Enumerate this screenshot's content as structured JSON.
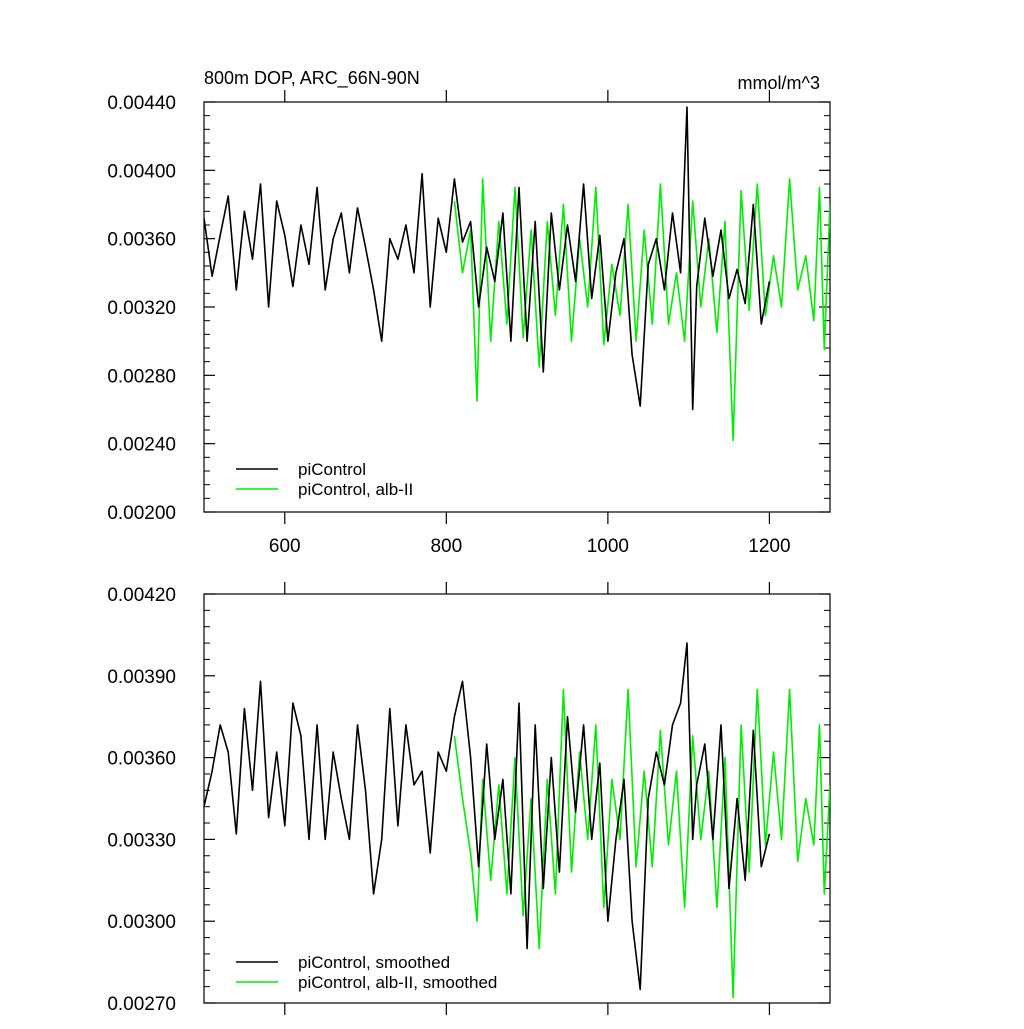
{
  "chart_data": [
    {
      "type": "line",
      "title": "800m DOP, ARC_66N-90N",
      "units": "mmol/m^3",
      "xlabel": "",
      "ylabel": "",
      "xlim": [
        500,
        1275
      ],
      "ylim": [
        0.002,
        0.0044
      ],
      "xticks": [
        600,
        800,
        1000,
        1200
      ],
      "xtick_labels": [
        "600",
        "800",
        "1000",
        "1200"
      ],
      "yticks": [
        0.002,
        0.0024,
        0.0028,
        0.0032,
        0.0036,
        0.004,
        0.0044
      ],
      "ytick_labels": [
        "0.00200",
        "0.00240",
        "0.00280",
        "0.00320",
        "0.00360",
        "0.00400",
        "0.00440"
      ],
      "grid": false,
      "legend_position": "bottom-left",
      "series": [
        {
          "name": "piControl",
          "color": "#000000",
          "x": [
            500,
            510,
            520,
            530,
            540,
            550,
            560,
            570,
            580,
            590,
            600,
            610,
            620,
            630,
            640,
            650,
            660,
            670,
            680,
            690,
            700,
            710,
            720,
            730,
            740,
            750,
            760,
            770,
            780,
            790,
            800,
            810,
            820,
            830,
            840,
            850,
            860,
            870,
            880,
            890,
            900,
            910,
            920,
            930,
            940,
            950,
            960,
            970,
            980,
            990,
            1000,
            1010,
            1020,
            1030,
            1040,
            1050,
            1060,
            1070,
            1080,
            1090,
            1098,
            1105,
            1110,
            1120,
            1130,
            1140,
            1150,
            1160,
            1170,
            1180,
            1190,
            1200
          ],
          "values": [
            0.00372,
            0.00338,
            0.00362,
            0.00385,
            0.0033,
            0.00376,
            0.00348,
            0.00392,
            0.0032,
            0.00382,
            0.00362,
            0.00332,
            0.00368,
            0.00345,
            0.0039,
            0.0033,
            0.0036,
            0.00375,
            0.0034,
            0.00378,
            0.00355,
            0.0033,
            0.003,
            0.0036,
            0.00348,
            0.00368,
            0.0034,
            0.00398,
            0.0032,
            0.00372,
            0.00352,
            0.00395,
            0.00358,
            0.0037,
            0.0032,
            0.00355,
            0.00335,
            0.00375,
            0.003,
            0.0039,
            0.003,
            0.0037,
            0.00282,
            0.00375,
            0.0033,
            0.00368,
            0.00335,
            0.00392,
            0.00325,
            0.00362,
            0.003,
            0.0034,
            0.0036,
            0.00292,
            0.00262,
            0.00345,
            0.0036,
            0.0033,
            0.00375,
            0.0034,
            0.00437,
            0.0026,
            0.00332,
            0.00372,
            0.00338,
            0.00365,
            0.00325,
            0.00342,
            0.00322,
            0.0038,
            0.0031,
            0.00335
          ]
        },
        {
          "name": "piControl, alb-II",
          "color": "#00ee00",
          "x": [
            810,
            820,
            830,
            838,
            845,
            855,
            865,
            875,
            885,
            895,
            905,
            915,
            925,
            935,
            945,
            955,
            965,
            975,
            985,
            995,
            1005,
            1015,
            1025,
            1035,
            1045,
            1055,
            1065,
            1075,
            1085,
            1095,
            1105,
            1115,
            1125,
            1135,
            1145,
            1155,
            1165,
            1175,
            1185,
            1195,
            1205,
            1215,
            1225,
            1235,
            1245,
            1255,
            1262,
            1268,
            1275
          ],
          "values": [
            0.00382,
            0.0034,
            0.00365,
            0.00265,
            0.00395,
            0.003,
            0.0037,
            0.0031,
            0.0039,
            0.00302,
            0.00365,
            0.00285,
            0.0037,
            0.00315,
            0.0038,
            0.003,
            0.0036,
            0.0032,
            0.0039,
            0.00298,
            0.00345,
            0.00315,
            0.0038,
            0.003,
            0.00365,
            0.0031,
            0.00392,
            0.0031,
            0.0034,
            0.003,
            0.00382,
            0.0032,
            0.0036,
            0.00305,
            0.0037,
            0.00242,
            0.00388,
            0.00318,
            0.00392,
            0.00315,
            0.0035,
            0.0032,
            0.00395,
            0.0033,
            0.0035,
            0.00312,
            0.0039,
            0.00295,
            0.0038
          ]
        }
      ]
    },
    {
      "type": "line",
      "title": "",
      "xlabel": "",
      "ylabel": "",
      "xlim": [
        500,
        1275
      ],
      "ylim": [
        0.0027,
        0.0042
      ],
      "xticks": [
        600,
        800,
        1000,
        1200
      ],
      "xtick_labels": [],
      "yticks": [
        0.0027,
        0.003,
        0.0033,
        0.0036,
        0.0039,
        0.0042
      ],
      "ytick_labels": [
        "0.00270",
        "0.00300",
        "0.00330",
        "0.00360",
        "0.00390",
        "0.00420"
      ],
      "grid": false,
      "legend_position": "bottom-left",
      "series": [
        {
          "name": "piControl, smoothed",
          "color": "#000000",
          "x": [
            500,
            510,
            520,
            530,
            540,
            550,
            560,
            570,
            580,
            590,
            600,
            610,
            620,
            630,
            640,
            650,
            660,
            670,
            680,
            690,
            700,
            710,
            720,
            730,
            740,
            750,
            760,
            770,
            780,
            790,
            800,
            810,
            820,
            830,
            840,
            850,
            860,
            870,
            880,
            890,
            900,
            910,
            920,
            930,
            940,
            950,
            960,
            970,
            980,
            990,
            1000,
            1010,
            1020,
            1030,
            1040,
            1050,
            1060,
            1070,
            1080,
            1090,
            1098,
            1105,
            1110,
            1120,
            1130,
            1140,
            1150,
            1160,
            1170,
            1180,
            1190,
            1200
          ],
          "values": [
            0.00342,
            0.00355,
            0.00372,
            0.00362,
            0.00332,
            0.00378,
            0.00348,
            0.00388,
            0.00338,
            0.00362,
            0.00335,
            0.0038,
            0.00368,
            0.0033,
            0.00372,
            0.0033,
            0.00362,
            0.00345,
            0.0033,
            0.00372,
            0.00348,
            0.0031,
            0.0033,
            0.00378,
            0.00335,
            0.00372,
            0.0035,
            0.00355,
            0.00325,
            0.00362,
            0.00355,
            0.00375,
            0.00388,
            0.0036,
            0.0032,
            0.00365,
            0.0033,
            0.00352,
            0.0031,
            0.0038,
            0.0029,
            0.00372,
            0.00312,
            0.0036,
            0.00318,
            0.00375,
            0.0034,
            0.00372,
            0.0033,
            0.00358,
            0.003,
            0.0033,
            0.00352,
            0.003,
            0.00275,
            0.00345,
            0.00362,
            0.0035,
            0.00372,
            0.0038,
            0.00402,
            0.0033,
            0.0035,
            0.00365,
            0.0033,
            0.00372,
            0.00312,
            0.00345,
            0.00315,
            0.0037,
            0.0032,
            0.00332
          ]
        },
        {
          "name": "piControl, alb-II, smoothed",
          "color": "#00ee00",
          "x": [
            810,
            820,
            830,
            838,
            845,
            855,
            865,
            875,
            885,
            895,
            905,
            915,
            925,
            935,
            945,
            955,
            965,
            975,
            985,
            995,
            1005,
            1015,
            1025,
            1035,
            1045,
            1055,
            1065,
            1075,
            1085,
            1095,
            1105,
            1115,
            1125,
            1135,
            1145,
            1155,
            1165,
            1175,
            1185,
            1195,
            1205,
            1215,
            1225,
            1235,
            1245,
            1255,
            1262,
            1268,
            1275
          ],
          "values": [
            0.00368,
            0.00345,
            0.00325,
            0.003,
            0.00352,
            0.00315,
            0.0035,
            0.0031,
            0.0036,
            0.00302,
            0.00345,
            0.0029,
            0.00352,
            0.0031,
            0.00385,
            0.00318,
            0.00362,
            0.0033,
            0.00372,
            0.00305,
            0.00352,
            0.0033,
            0.00385,
            0.0032,
            0.00355,
            0.0032,
            0.0037,
            0.00328,
            0.00355,
            0.00305,
            0.00368,
            0.0033,
            0.00355,
            0.00305,
            0.0036,
            0.00272,
            0.00372,
            0.00318,
            0.00385,
            0.00328,
            0.00362,
            0.0033,
            0.00385,
            0.00322,
            0.00345,
            0.00328,
            0.00372,
            0.0031,
            0.0035
          ]
        }
      ]
    }
  ]
}
